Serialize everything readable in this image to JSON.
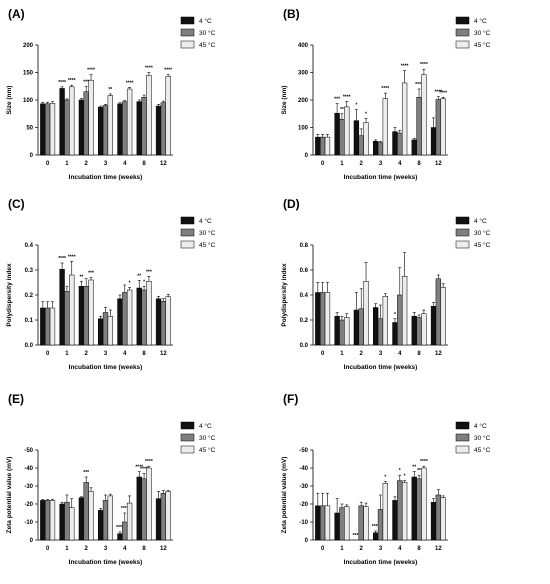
{
  "legend_labels": [
    "4 °C",
    "30 °C",
    "45 °C"
  ],
  "colors": {
    "s0": "#111111",
    "s1": "#7f7f7f",
    "s2": "#ececec",
    "edge": "#000000"
  },
  "chart_data": [
    {
      "label": "(A)",
      "type": "bar",
      "ylabel": "Size (nm)",
      "xlabel": "Incubation time (weeks)",
      "categories": [
        "0",
        "1",
        "2",
        "3",
        "4",
        "8",
        "12"
      ],
      "ylim": [
        0,
        200
      ],
      "yticks": [
        0,
        50,
        100,
        150,
        200
      ],
      "reversed": false,
      "series": [
        {
          "name": "4 °C",
          "values": [
            93,
            121,
            100,
            87,
            93,
            97,
            89
          ],
          "err": [
            3,
            3,
            3,
            2,
            2,
            3,
            3
          ],
          "sig": [
            "",
            "****",
            "",
            "",
            "",
            "",
            ""
          ]
        },
        {
          "name": "30 °C",
          "values": [
            93,
            100,
            115,
            90,
            97,
            105,
            95
          ],
          "err": [
            3,
            2,
            10,
            2,
            2,
            4,
            3
          ],
          "sig": [
            "",
            "",
            "***",
            "",
            "",
            "",
            ""
          ]
        },
        {
          "name": "45 °C",
          "values": [
            94,
            124,
            136,
            108,
            120,
            145,
            143
          ],
          "err": [
            3,
            3,
            10,
            3,
            3,
            5,
            3
          ],
          "sig": [
            "",
            "****",
            "****",
            "**",
            "****",
            "****",
            "****"
          ]
        }
      ]
    },
    {
      "label": "(B)",
      "type": "bar",
      "ylabel": "Size (nm)",
      "xlabel": "Incubation time (weeks)",
      "categories": [
        "0",
        "1",
        "2",
        "3",
        "4",
        "8",
        "12"
      ],
      "ylim": [
        0,
        400
      ],
      "yticks": [
        0,
        100,
        200,
        300,
        400
      ],
      "reversed": false,
      "series": [
        {
          "name": "4 °C",
          "values": [
            65,
            152,
            125,
            50,
            85,
            55,
            100
          ],
          "err": [
            10,
            35,
            40,
            5,
            15,
            5,
            35
          ],
          "sig": [
            "",
            "***",
            "*",
            "",
            "",
            "",
            ""
          ]
        },
        {
          "name": "30 °C",
          "values": [
            65,
            130,
            70,
            45,
            80,
            210,
            202
          ],
          "err": [
            10,
            20,
            25,
            5,
            10,
            30,
            10
          ],
          "sig": [
            "",
            "**",
            "",
            "",
            "",
            "****",
            "****"
          ]
        },
        {
          "name": "45 °C",
          "values": [
            65,
            175,
            118,
            205,
            262,
            292,
            205
          ],
          "err": [
            10,
            20,
            15,
            20,
            45,
            20,
            5
          ],
          "sig": [
            "",
            "****",
            "*",
            "****",
            "****",
            "****",
            "****"
          ]
        }
      ]
    },
    {
      "label": "(C)",
      "type": "bar",
      "ylabel": "Polydispersity index",
      "xlabel": "Incubation time (weeks)",
      "categories": [
        "0",
        "1",
        "2",
        "3",
        "4",
        "8",
        "12"
      ],
      "ylim": [
        0,
        0.4
      ],
      "yticks": [
        0.0,
        0.1,
        0.2,
        0.3,
        0.4
      ],
      "reversed": false,
      "series": [
        {
          "name": "4 °C",
          "values": [
            0.148,
            0.303,
            0.235,
            0.105,
            0.185,
            0.228,
            0.185
          ],
          "err": [
            0.025,
            0.025,
            0.02,
            0.01,
            0.015,
            0.03,
            0.01
          ],
          "sig": [
            "",
            "****",
            "**",
            "",
            "",
            "**",
            ""
          ]
        },
        {
          "name": "30 °C",
          "values": [
            0.148,
            0.215,
            0.235,
            0.13,
            0.21,
            0.22,
            0.175
          ],
          "err": [
            0.025,
            0.02,
            0.03,
            0.02,
            0.03,
            0.015,
            0.01
          ],
          "sig": [
            "",
            "",
            "",
            "",
            "",
            "*",
            ""
          ]
        },
        {
          "name": "45 °C",
          "values": [
            0.148,
            0.28,
            0.26,
            0.115,
            0.22,
            0.255,
            0.193
          ],
          "err": [
            0.025,
            0.055,
            0.01,
            0.025,
            0.01,
            0.02,
            0.01
          ],
          "sig": [
            "",
            "****",
            "***",
            "",
            "*",
            "***",
            ""
          ]
        }
      ]
    },
    {
      "label": "(D)",
      "type": "bar",
      "ylabel": "Polydispersity index",
      "xlabel": "Incubation time (weeks)",
      "categories": [
        "0",
        "1",
        "2",
        "3",
        "4",
        "8",
        "12"
      ],
      "ylim": [
        0,
        0.8
      ],
      "yticks": [
        0.0,
        0.2,
        0.4,
        0.6,
        0.8
      ],
      "reversed": false,
      "series": [
        {
          "name": "4 °C",
          "values": [
            0.42,
            0.23,
            0.28,
            0.3,
            0.18,
            0.23,
            0.31
          ],
          "err": [
            0.08,
            0.03,
            0.14,
            0.03,
            0.03,
            0.03,
            0.03
          ],
          "sig": [
            "",
            "",
            "",
            "",
            "*",
            "",
            ""
          ]
        },
        {
          "name": "30 °C",
          "values": [
            0.42,
            0.2,
            0.29,
            0.21,
            0.4,
            0.22,
            0.53
          ],
          "err": [
            0.08,
            0.03,
            0.16,
            0.11,
            0.22,
            0.02,
            0.03
          ],
          "sig": [
            "",
            "",
            "",
            "",
            "",
            "",
            ""
          ]
        },
        {
          "name": "45 °C",
          "values": [
            0.42,
            0.22,
            0.51,
            0.39,
            0.55,
            0.25,
            0.46
          ],
          "err": [
            0.08,
            0.03,
            0.15,
            0.02,
            0.19,
            0.03,
            0.03
          ],
          "sig": [
            "",
            "",
            "",
            "",
            "",
            "",
            ""
          ]
        }
      ]
    },
    {
      "label": "(E)",
      "type": "bar",
      "ylabel": "Zeta potential value (mV)",
      "xlabel": "Incubation time (weeks)",
      "categories": [
        "0",
        "1",
        "2",
        "3",
        "4",
        "8",
        "12"
      ],
      "ylim": [
        0,
        -50
      ],
      "yticks": [
        0,
        -10,
        -20,
        -30,
        -40,
        -50
      ],
      "reversed": true,
      "series": [
        {
          "name": "4 °C",
          "values": [
            -22,
            -20,
            -23.5,
            -16.5,
            -3.5,
            -35,
            -23
          ],
          "err": [
            0.5,
            1,
            0.5,
            1,
            1,
            3,
            4
          ],
          "sig": [
            "",
            "",
            "",
            "",
            "****",
            "****",
            ""
          ]
        },
        {
          "name": "30 °C",
          "values": [
            -22,
            -21,
            -32,
            -22,
            -10,
            -34,
            -26
          ],
          "err": [
            0.5,
            4,
            3,
            3,
            5,
            3,
            1.5
          ],
          "sig": [
            "",
            "",
            "***",
            "",
            "****",
            "****",
            ""
          ]
        },
        {
          "name": "45 °C",
          "values": [
            -22,
            -18,
            -27,
            -24.5,
            -20.5,
            -40,
            -27
          ],
          "err": [
            0.5,
            5,
            2,
            1,
            4,
            1,
            0.5
          ],
          "sig": [
            "",
            "",
            "",
            "",
            "",
            "****",
            ""
          ]
        }
      ]
    },
    {
      "label": "(F)",
      "type": "bar",
      "ylabel": "Zeta potential value (mV)",
      "xlabel": "Incubation time (weeks)",
      "categories": [
        "0",
        "1",
        "2",
        "3",
        "4",
        "8",
        "12"
      ],
      "ylim": [
        0,
        -50
      ],
      "yticks": [
        0,
        -10,
        -20,
        -30,
        -40,
        -50
      ],
      "reversed": true,
      "series": [
        {
          "name": "4 °C",
          "values": [
            -19,
            -15,
            0,
            -4,
            -22,
            -35,
            -21
          ],
          "err": [
            7,
            8,
            0,
            1,
            2,
            3,
            2
          ],
          "sig": [
            "",
            "",
            "****",
            "****",
            "",
            "**",
            ""
          ]
        },
        {
          "name": "30 °C",
          "values": [
            -19,
            -18,
            -19,
            -17,
            -33,
            -34,
            -25
          ],
          "err": [
            7,
            2,
            2,
            8,
            3,
            2,
            3
          ],
          "sig": [
            "",
            "",
            "",
            "",
            "*",
            "**",
            ""
          ]
        },
        {
          "name": "45 °C",
          "values": [
            -19,
            -18.5,
            -18.5,
            -31.5,
            -32,
            -40,
            -23.5
          ],
          "err": [
            7,
            1,
            2,
            1,
            1,
            1,
            1
          ],
          "sig": [
            "",
            "",
            "",
            "*",
            "*",
            "****",
            ""
          ]
        }
      ]
    }
  ]
}
